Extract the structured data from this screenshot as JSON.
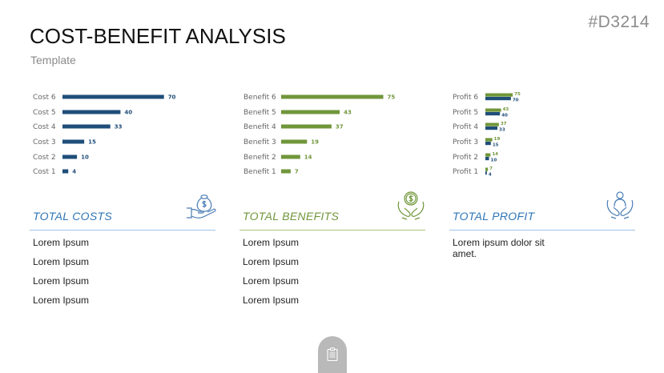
{
  "slide": {
    "code": "#D3214",
    "title": "COST-BENEFIT ANALYSIS",
    "subtitle": "Template"
  },
  "colors": {
    "cost": "#1f4e79",
    "benefit": "#70963a",
    "rule": "#9dc3e6",
    "rule_benefit": "#a9c47f",
    "icon": "#4a7db5"
  },
  "sections": {
    "costs": {
      "heading": "TOTAL COSTS",
      "items": [
        "Lorem Ipsum",
        "Lorem Ipsum",
        "Lorem Ipsum",
        "Lorem Ipsum"
      ]
    },
    "benefits": {
      "heading": "TOTAL BENEFITS",
      "items": [
        "Lorem Ipsum",
        "Lorem Ipsum",
        "Lorem Ipsum",
        "Lorem Ipsum"
      ]
    },
    "profit": {
      "heading": "TOTAL PROFIT",
      "text": "Lorem ipsum dolor sit amet."
    }
  },
  "icons": {
    "costs": "hand-money-bag-icon",
    "benefits": "hands-coin-icon",
    "profit": "hands-person-icon",
    "footer": "clipboard-icon"
  },
  "chart_data": [
    {
      "type": "bar",
      "orientation": "horizontal",
      "categories": [
        "Cost 6",
        "Cost 5",
        "Cost 4",
        "Cost 3",
        "Cost 2",
        "Cost 1"
      ],
      "values": [
        70,
        40,
        33,
        15,
        10,
        4
      ],
      "color": "#1f4e79"
    },
    {
      "type": "bar",
      "orientation": "horizontal",
      "categories": [
        "Benefit 6",
        "Benefit 5",
        "Benefit 4",
        "Benefit 3",
        "Benefit 2",
        "Benefit 1"
      ],
      "values": [
        75,
        43,
        37,
        19,
        14,
        7
      ],
      "color": "#70963a"
    },
    {
      "type": "bar",
      "orientation": "horizontal",
      "categories": [
        "Profit 6",
        "Profit 5",
        "Profit 4",
        "Profit 3",
        "Profit 2",
        "Profit 1"
      ],
      "series": [
        {
          "values": [
            75,
            43,
            37,
            19,
            14,
            7
          ],
          "color": "#70963a"
        },
        {
          "values": [
            70,
            40,
            33,
            15,
            10,
            4
          ],
          "color": "#1f4e79"
        }
      ]
    }
  ]
}
